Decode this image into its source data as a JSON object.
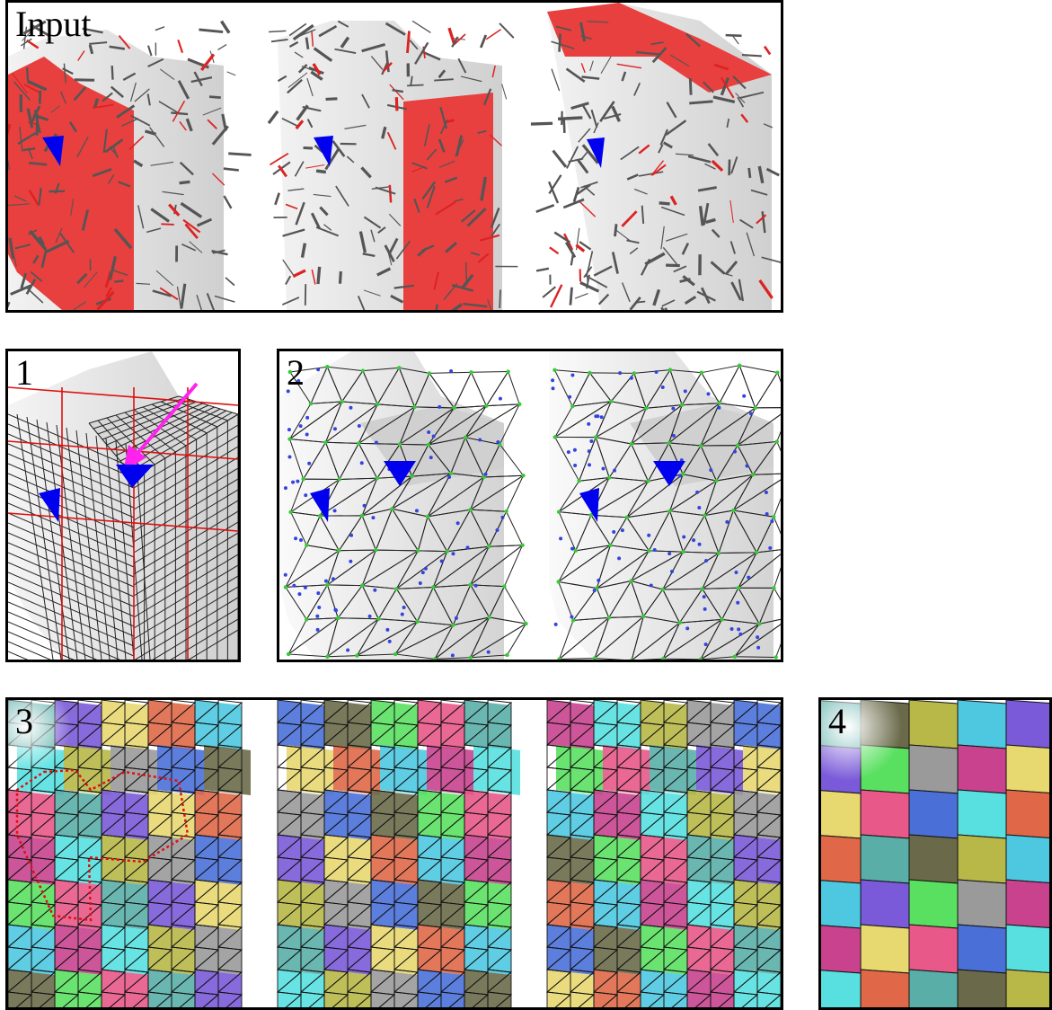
{
  "panels": [
    {
      "id": "input",
      "label": "Input"
    },
    {
      "id": "1",
      "label": "1"
    },
    {
      "id": "2",
      "label": "2"
    },
    {
      "id": "3",
      "label": "3"
    },
    {
      "id": "4",
      "label": "4"
    }
  ],
  "colors": {
    "input_highlight": "#e8403e",
    "singularity": "#0000ee",
    "arrow": "#ff22ee",
    "mesh_line": "#222222",
    "red_line": "#dd1111",
    "green_vertex": "#33cc33",
    "blue_vertex": "#3344dd",
    "patch_palette": [
      "#5aaea8",
      "#4a70d8",
      "#c8428e",
      "#7a5ad8",
      "#6a6a4a",
      "#58e0e0",
      "#e8d870",
      "#5ae060",
      "#b8b848",
      "#e06848",
      "#e85888",
      "#9a9a9a",
      "#4ec8e0"
    ]
  }
}
